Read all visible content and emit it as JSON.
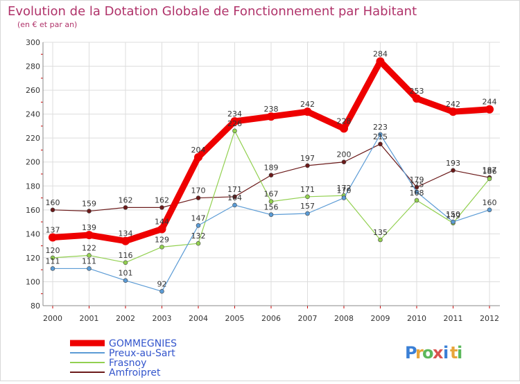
{
  "header": {
    "title": "Evolution de la Dotation Globale de Fonctionnement par Habitant",
    "subtitle": "(en € et par an)"
  },
  "logo": {
    "letters": [
      "P",
      "r",
      "o",
      "x",
      "i",
      "t",
      "i"
    ],
    "colors": [
      "#3a7fd5",
      "#e8a53a",
      "#5cb85c",
      "#d9534f",
      "#3a7fd5",
      "#e8a53a",
      "#5cb85c"
    ]
  },
  "chart_data": {
    "type": "line",
    "title": "Evolution de la Dotation Globale de Fonctionnement par Habitant",
    "subtitle": "(en € et par an)",
    "xlabel": "",
    "ylabel": "",
    "x": [
      "2000",
      "2001",
      "2002",
      "2003",
      "2004",
      "2005",
      "2006",
      "2007",
      "2008",
      "2009",
      "2010",
      "2011",
      "2012"
    ],
    "ylim": [
      80,
      300
    ],
    "yticks": [
      80,
      100,
      120,
      140,
      160,
      180,
      200,
      220,
      240,
      260,
      280,
      300
    ],
    "grid": true,
    "legend_position": "bottom-left",
    "series": [
      {
        "name": "GOMMEGNIES",
        "color": "#ee0000",
        "values": [
          137,
          139,
          134,
          144,
          204,
          234,
          238,
          242,
          228,
          284,
          253,
          242,
          244
        ]
      },
      {
        "name": "Preux-au-Sart",
        "color": "#5b9bd5",
        "values": [
          111,
          111,
          101,
          92,
          147,
          164,
          156,
          157,
          170,
          223,
          175,
          150,
          160
        ]
      },
      {
        "name": "Frasnoy",
        "color": "#92d050",
        "values": [
          120,
          122,
          116,
          129,
          132,
          226,
          167,
          171,
          172,
          135,
          168,
          149,
          186
        ]
      },
      {
        "name": "Amfroipret",
        "color": "#6b1a1a",
        "values": [
          160,
          159,
          162,
          162,
          170,
          171,
          189,
          197,
          200,
          215,
          179,
          193,
          187
        ]
      }
    ]
  }
}
